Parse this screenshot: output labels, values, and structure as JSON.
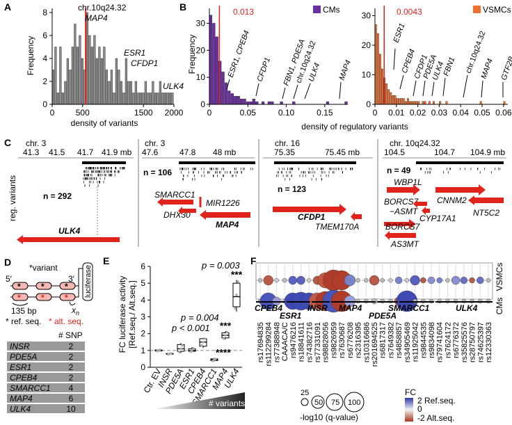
{
  "panels": {
    "A": "A",
    "B": "B",
    "C": "C",
    "D": "D",
    "E": "E",
    "F": "F"
  },
  "panel_a": {
    "chart_data": {
      "type": "bar",
      "xlabel": "density of variants",
      "ylabel": "Frequency",
      "xlim": [
        0,
        2000
      ],
      "ylim": [
        0,
        8
      ],
      "x_ticks": [
        "0",
        "500",
        "1500",
        "2000"
      ],
      "y_ticks": [
        "0",
        "2",
        "4",
        "6",
        "8"
      ],
      "bins": [
        {
          "x": 20,
          "v": 3
        },
        {
          "x": 60,
          "v": 5
        },
        {
          "x": 100,
          "v": 1
        },
        {
          "x": 140,
          "v": 5
        },
        {
          "x": 180,
          "v": 1
        },
        {
          "x": 220,
          "v": 2
        },
        {
          "x": 260,
          "v": 4
        },
        {
          "x": 300,
          "v": 3
        },
        {
          "x": 340,
          "v": 5
        },
        {
          "x": 380,
          "v": 7
        },
        {
          "x": 420,
          "v": 5
        },
        {
          "x": 460,
          "v": 6
        },
        {
          "x": 500,
          "v": 4
        },
        {
          "x": 540,
          "v": 3
        },
        {
          "x": 580,
          "v": 8
        },
        {
          "x": 620,
          "v": 6
        },
        {
          "x": 660,
          "v": 5
        },
        {
          "x": 700,
          "v": 6
        },
        {
          "x": 740,
          "v": 4
        },
        {
          "x": 780,
          "v": 5
        },
        {
          "x": 820,
          "v": 4
        },
        {
          "x": 860,
          "v": 5
        },
        {
          "x": 900,
          "v": 3
        },
        {
          "x": 940,
          "v": 2
        },
        {
          "x": 980,
          "v": 3
        },
        {
          "x": 1020,
          "v": 1
        },
        {
          "x": 1060,
          "v": 4
        },
        {
          "x": 1100,
          "v": 3
        },
        {
          "x": 1140,
          "v": 2
        },
        {
          "x": 1180,
          "v": 1
        },
        {
          "x": 1220,
          "v": 4
        },
        {
          "x": 1260,
          "v": 2
        },
        {
          "x": 1300,
          "v": 2
        },
        {
          "x": 1340,
          "v": 1
        },
        {
          "x": 1380,
          "v": 2
        },
        {
          "x": 1420,
          "v": 1
        },
        {
          "x": 1460,
          "v": 1
        },
        {
          "x": 1500,
          "v": 1
        },
        {
          "x": 1540,
          "v": 2
        },
        {
          "x": 1580,
          "v": 1
        },
        {
          "x": 1620,
          "v": 1
        },
        {
          "x": 1660,
          "v": 2
        },
        {
          "x": 1700,
          "v": 1
        },
        {
          "x": 1740,
          "v": 1
        },
        {
          "x": 1780,
          "v": 2
        },
        {
          "x": 1820,
          "v": 1
        },
        {
          "x": 1860,
          "v": 1
        },
        {
          "x": 1900,
          "v": 1
        },
        {
          "x": 1940,
          "v": 1
        },
        {
          "x": 1980,
          "v": 1
        }
      ],
      "marker_x": 550,
      "annotations": [
        {
          "text": "chr.10q24.32",
          "x": 560,
          "italic": false
        },
        {
          "text": "MAP4",
          "x": 560,
          "italic": true
        },
        {
          "text": "ESR1",
          "x": 1470,
          "italic": true
        },
        {
          "text": "CFDP1",
          "x": 1570,
          "italic": true
        },
        {
          "text": "ULK4",
          "x": 1940,
          "italic": true
        }
      ]
    }
  },
  "panel_b": {
    "xlabel": "density of regulatory variants",
    "ylabel": "Frequency",
    "cms": {
      "legend": "CMs",
      "color": "#6a2fa0",
      "threshold_label": "0.013",
      "threshold": 0.013,
      "chart_data": {
        "type": "bar",
        "xlim": [
          0,
          0.18
        ],
        "ylim": [
          0,
          35
        ],
        "x_ticks": [
          "0",
          "0.05",
          "0.10",
          "0.15"
        ],
        "y_ticks": [
          "0",
          "10",
          "20",
          "30"
        ],
        "values": [
          33,
          30,
          25,
          16,
          12,
          8,
          5,
          4,
          3,
          3,
          2,
          2,
          1,
          1,
          2,
          1,
          0,
          1,
          0,
          1,
          1,
          0,
          0,
          1,
          0,
          0,
          0,
          1,
          0,
          0,
          0,
          0,
          0,
          0,
          0,
          0,
          0,
          0,
          1,
          0,
          0,
          0,
          0,
          0,
          1
        ],
        "bin_width": 0.004,
        "annotations": [
          {
            "text": "ESR1, CPEB4",
            "x": 0.006,
            "italic": true
          },
          {
            "text": "CFDP1",
            "x": 0.055,
            "italic": true
          },
          {
            "text": "FBN1, PDE5A",
            "x": 0.098,
            "italic": true
          },
          {
            "text": "chr.10q24.32",
            "x": 0.118,
            "italic": false
          },
          {
            "text": "ULK4",
            "x": 0.125,
            "italic": true
          },
          {
            "text": "MAP4",
            "x": 0.175,
            "italic": true
          }
        ]
      }
    },
    "vsmcs": {
      "legend": "VSMCs",
      "color": "#f07030",
      "threshold_label": "0.0043",
      "threshold": 0.0043,
      "chart_data": {
        "type": "bar",
        "xlim": [
          0,
          0.062
        ],
        "ylim": [
          0,
          32
        ],
        "x_ticks": [
          "0",
          "0.01",
          "0.02",
          "0.03",
          "0.04",
          "0.05",
          "0.06"
        ],
        "y_ticks": [
          "0",
          "10",
          "20",
          "30"
        ],
        "values": [
          27,
          24,
          17,
          12,
          9,
          7,
          5,
          4,
          3,
          3,
          2,
          2,
          2,
          2,
          1,
          2,
          1,
          1,
          1,
          1,
          1,
          0,
          1,
          1,
          0,
          1,
          0,
          1,
          0,
          0,
          1,
          0,
          0,
          1,
          0,
          0,
          0,
          0,
          0,
          0,
          0,
          0,
          0,
          0,
          0,
          0,
          0,
          0,
          0,
          1,
          0,
          0,
          0,
          0,
          0,
          0,
          0,
          0,
          0,
          0,
          1
        ],
        "bin_width": 0.001,
        "annotations": [
          {
            "text": "ESR1",
            "x": 0.0045,
            "italic": true
          },
          {
            "text": "CPEB4",
            "x": 0.008,
            "italic": true
          },
          {
            "text": "CFDP1",
            "x": 0.016,
            "italic": true
          },
          {
            "text": "PDE5A",
            "x": 0.0205,
            "italic": true
          },
          {
            "text": "ULK4",
            "x": 0.0245,
            "italic": true
          },
          {
            "text": "FBN1",
            "x": 0.03,
            "italic": true
          },
          {
            "text": "chr.10q24.32",
            "x": 0.04,
            "italic": false
          },
          {
            "text": "MAP4",
            "x": 0.049,
            "italic": true
          },
          {
            "text": "GTF2B",
            "x": 0.06,
            "italic": true
          }
        ]
      }
    }
  },
  "panel_c": {
    "side_label": "reg. variants",
    "tracks": [
      {
        "chr": "chr. 3",
        "ticks": [
          "41.3",
          "41.5",
          "41.7",
          "41.9 mb"
        ],
        "n": "n = 292",
        "genes": [
          {
            "name": "ULK4",
            "bold": true
          }
        ]
      },
      {
        "chr": "chr. 3",
        "ticks": [
          "47.6",
          "47.8",
          "48 mb"
        ],
        "n": "n = 106",
        "genes": [
          {
            "name": "SMARCC1",
            "bold": false
          },
          {
            "name": "MIR1226",
            "bold": false
          },
          {
            "name": "DHX30",
            "bold": false
          },
          {
            "name": "MAP4",
            "bold": true
          }
        ]
      },
      {
        "chr": "chr. 16",
        "ticks": [
          "75.35",
          "75.45 mb"
        ],
        "n": "n = 123",
        "genes": [
          {
            "name": "CFDP1",
            "bold": true
          },
          {
            "name": "TMEM170A",
            "bold": false
          }
        ]
      },
      {
        "chr": "chr. 10q24.32",
        "ticks": [
          "104.5",
          "104.7",
          "104.9 mb"
        ],
        "n": "n = 49",
        "genes": [
          {
            "name": "WBP1L",
            "bold": false
          },
          {
            "name": "CNNM2",
            "bold": false
          },
          {
            "name": "BORCS7",
            "bold": false
          },
          {
            "name": "−ASMT",
            "bold": false
          },
          {
            "name": "CYP17A1",
            "bold": false
          },
          {
            "name": "NT5C2",
            "bold": false
          },
          {
            "name": "BORCS7",
            "bold": false
          },
          {
            "name": "AS3MT",
            "bold": false
          }
        ]
      }
    ]
  },
  "panel_d": {
    "variant_label": "*variant",
    "five": "5′",
    "three": "3′",
    "luciferase": "luciferase",
    "bp": "135 bp",
    "xn": "x",
    "xn_sub": "n",
    "ref_label": "* ref. seq.",
    "alt_label": "* alt. seq.",
    "table_header": "# SNP",
    "rows": [
      {
        "gene": "INSR",
        "n": "2"
      },
      {
        "gene": "PDE5A",
        "n": "2"
      },
      {
        "gene": "ESR1",
        "n": "2"
      },
      {
        "gene": "CPEB4",
        "n": "2"
      },
      {
        "gene": "SMARCC1",
        "n": "4"
      },
      {
        "gene": "MAP4",
        "n": "6"
      },
      {
        "gene": "ULK4",
        "n": "10"
      }
    ]
  },
  "panel_e": {
    "ylabel1": "FC luciferase activity",
    "ylabel2": "[Ref.seq./ Alt.seq.]",
    "y_ticks": [
      "0",
      "1",
      "2",
      "3",
      "4",
      "5",
      "6"
    ],
    "gradient_label": "# variants",
    "pvals": [
      {
        "text": "p = 0.003"
      },
      {
        "text": "p = 0.004"
      },
      {
        "text": "p < 0.001"
      }
    ],
    "chart_data": {
      "type": "box",
      "ylim": [
        0,
        6
      ],
      "reference_line": 1,
      "categories": [
        "Ctr. EV",
        "INSR",
        "PDE5A",
        "ESR1",
        "CPEB4",
        "SMARCC1",
        "MAP4",
        "ULK4"
      ],
      "boxes": [
        {
          "q1": 0.97,
          "median": 1.0,
          "q3": 1.03,
          "min": 0.95,
          "max": 1.05,
          "pts": [
            0.96,
            1.0,
            1.04
          ],
          "sig": ""
        },
        {
          "q1": 0.78,
          "median": 0.8,
          "q3": 0.82,
          "min": 0.76,
          "max": 0.84,
          "pts": [
            0.77,
            0.8,
            0.83
          ],
          "sig": ""
        },
        {
          "q1": 0.95,
          "median": 1.1,
          "q3": 1.35,
          "min": 0.85,
          "max": 1.45,
          "pts": [
            0.9,
            1.1,
            1.3
          ],
          "sig": ""
        },
        {
          "q1": 0.95,
          "median": 1.0,
          "q3": 1.1,
          "min": 0.9,
          "max": 1.2,
          "pts": [
            0.93,
            1.0,
            1.12
          ],
          "sig": ""
        },
        {
          "q1": 1.25,
          "median": 1.5,
          "q3": 1.7,
          "min": 1.15,
          "max": 1.75,
          "pts": [
            1.3,
            1.5,
            1.7
          ],
          "sig": ""
        },
        {
          "q1": 0.4,
          "median": 0.45,
          "q3": 0.5,
          "min": 0.35,
          "max": 0.55,
          "pts": [
            0.38,
            0.45,
            0.5
          ],
          "sig": "****"
        },
        {
          "q1": 1.75,
          "median": 1.9,
          "q3": 2.05,
          "min": 1.65,
          "max": 2.15,
          "pts": [
            1.7,
            1.9,
            2.1
          ],
          "sig": "***"
        },
        {
          "q1": 3.6,
          "median": 4.2,
          "q3": 5.0,
          "min": 3.3,
          "max": 5.2,
          "pts": [
            3.5,
            4.3,
            5.1
          ],
          "sig": "***"
        }
      ]
    }
  },
  "panel_f": {
    "row_labels": [
      "VSMCs",
      "CMs"
    ],
    "gene_groups": [
      {
        "name": "CPEB4"
      },
      {
        "name": "ESR1"
      },
      {
        "name": "INSR"
      },
      {
        "name": "MAP4"
      },
      {
        "name": "PDE5A"
      },
      {
        "name": "SMARCC1"
      },
      {
        "name": "ULK4"
      }
    ],
    "snps": [
      "rs17694835",
      "rs112299284",
      "rs77388948",
      "CAAACA/C",
      "rs9476216",
      "rs18841611",
      "rs74382716",
      "rs77331091",
      "rs98828056",
      "rs9826959",
      "rs7630687",
      "rs6776208",
      "rs2316395",
      "rs10316686",
      "rs201694525",
      "rs6817317",
      "rs7649382",
      "rs4858857",
      "rs34905469",
      "rs11925042",
      "rs9844535",
      "rs9834098",
      "rs79741604",
      "rs7624172",
      "rs6776372",
      "rs35825576",
      "rs28750797",
      "rs74625397",
      "rs12330363"
    ],
    "fc_legend": "FC",
    "fc_ref": "2 Ref.seq.",
    "fc_zero": "0",
    "fc_alt": "-2 Alt.seq.",
    "size_legend": [
      "25",
      "50",
      "75",
      "100"
    ],
    "size_title": "-log10 (q-value)"
  }
}
